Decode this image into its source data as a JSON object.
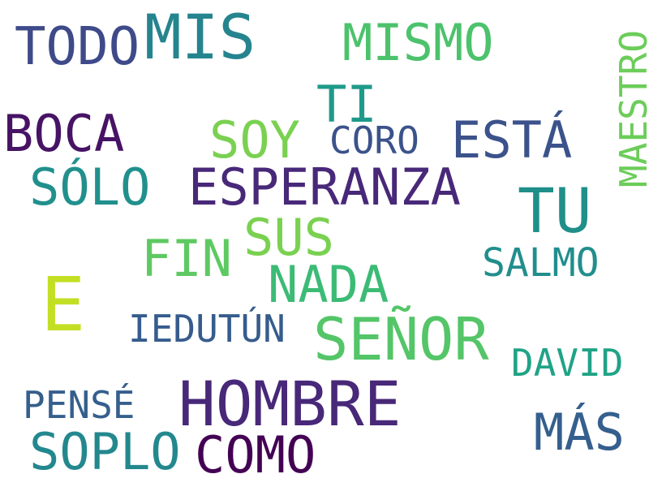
{
  "words": [
    {
      "text": "MIS",
      "color": "#25848e"
    },
    {
      "text": "TODO",
      "color": "#3e4a89"
    },
    {
      "text": "MISMO",
      "color": "#4cc26c"
    },
    {
      "text": "MAESTRO",
      "color": "#6ccd5a"
    },
    {
      "text": "TI",
      "color": "#1f9a8a"
    },
    {
      "text": "BOCA",
      "color": "#471365"
    },
    {
      "text": "SOY",
      "color": "#7ad151"
    },
    {
      "text": "CORO",
      "color": "#3b528b"
    },
    {
      "text": "ESTÁ",
      "color": "#3b528b"
    },
    {
      "text": "SÓLO",
      "color": "#21908d"
    },
    {
      "text": "ESPERANZA",
      "color": "#482878"
    },
    {
      "text": "TU",
      "color": "#1f8f8a"
    },
    {
      "text": "SUS",
      "color": "#7ad151"
    },
    {
      "text": "FIN",
      "color": "#5ec962"
    },
    {
      "text": "SALMO",
      "color": "#218e8d"
    },
    {
      "text": "NADA",
      "color": "#3cbb75"
    },
    {
      "text": "E",
      "color": "#c2df23"
    },
    {
      "text": "IEDUTÚN",
      "color": "#365c8d"
    },
    {
      "text": "SEÑOR",
      "color": "#54c568"
    },
    {
      "text": "DAVID",
      "color": "#20a386"
    },
    {
      "text": "PENSÉ",
      "color": "#355f8d"
    },
    {
      "text": "HOMBRE",
      "color": "#482878"
    },
    {
      "text": "MÁS",
      "color": "#355f8d"
    },
    {
      "text": "SOPLO",
      "color": "#23888e"
    },
    {
      "text": "COMO",
      "color": "#440154"
    }
  ]
}
